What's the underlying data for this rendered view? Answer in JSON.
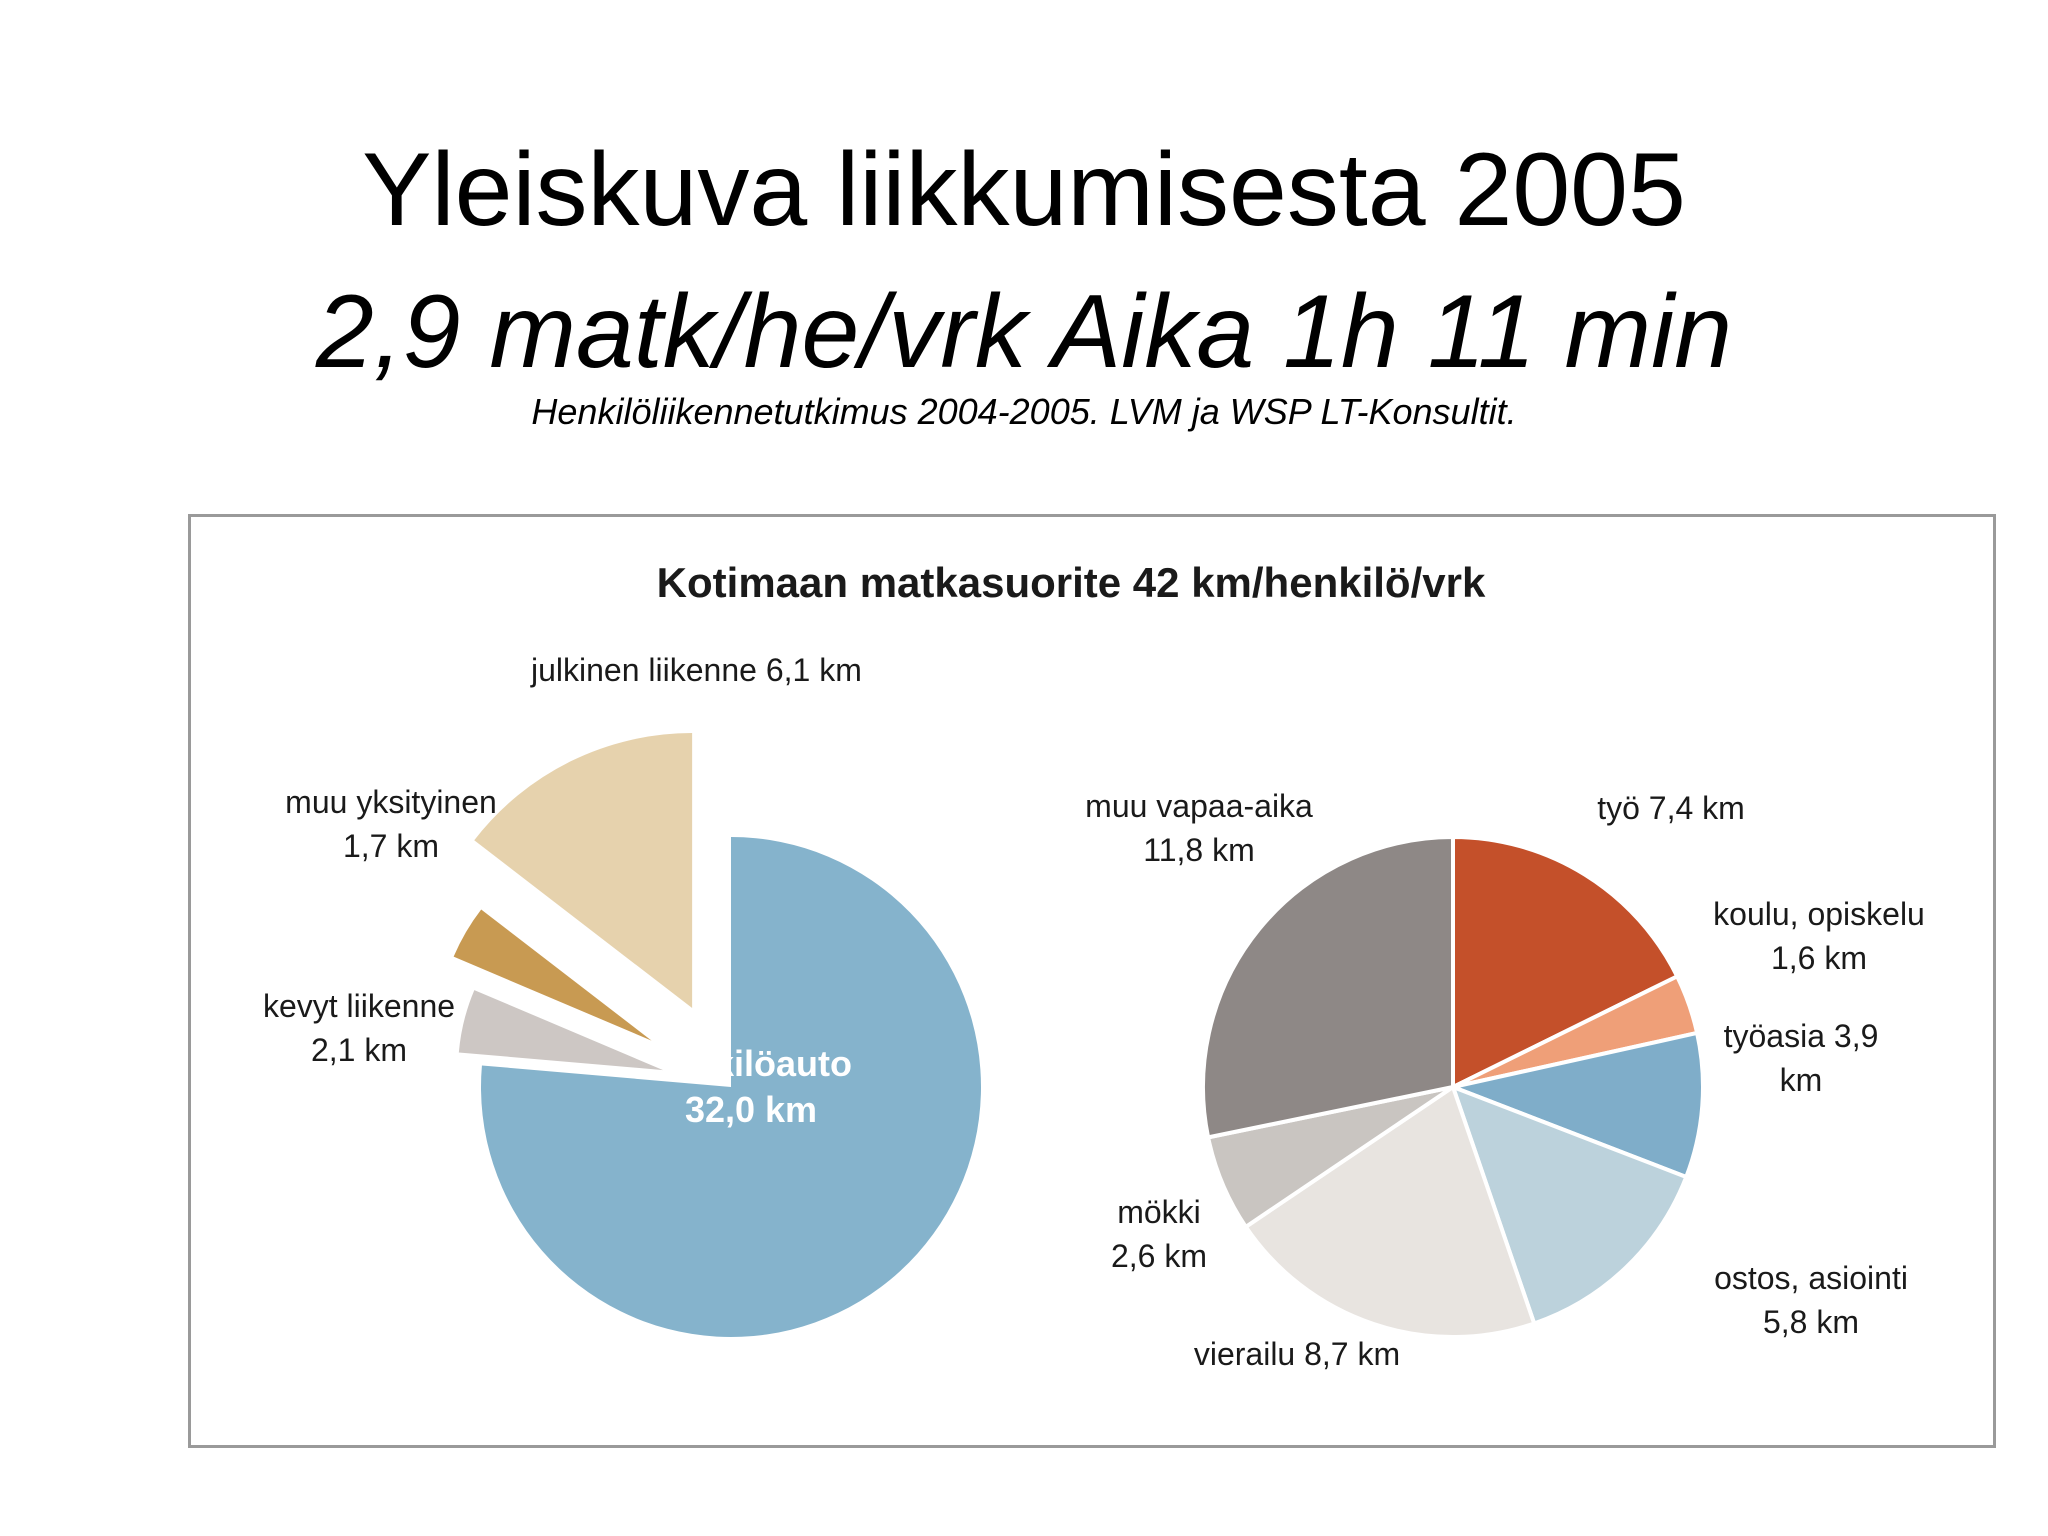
{
  "slide": {
    "title": "Yleiskuva liikkumisesta 2005",
    "subtitle": "2,9 matk/he/vrk Aika 1h 11 min",
    "source": "Henkilöliikennetutkimus 2004-2005. LVM  ja WSP LT-Konsultit."
  },
  "chart_data": [
    {
      "type": "pie",
      "title": "Kotimaan matkasuorite 42 km/henkilö/vrk",
      "unit": "km",
      "exploded": true,
      "slices": [
        {
          "name": "henkilöauto",
          "value": 32.0,
          "label": [
            "henkilöauto",
            "32,0 km"
          ],
          "color": "#85b3cc"
        },
        {
          "name": "kevyt liikenne",
          "value": 2.1,
          "label": [
            "kevyt liikenne",
            "2,1 km"
          ],
          "color": "#cdc7c4"
        },
        {
          "name": "muu yksityinen",
          "value": 1.7,
          "label": [
            "muu yksityinen",
            "1,7 km"
          ],
          "color": "#c89a52"
        },
        {
          "name": "julkinen liikenne",
          "value": 6.1,
          "label": [
            "julkinen liikenne 6,1 km"
          ],
          "color": "#e6d2ad"
        }
      ]
    },
    {
      "type": "pie",
      "title": "",
      "unit": "km",
      "slices": [
        {
          "name": "työ",
          "value": 7.4,
          "label": [
            "työ 7,4 km"
          ],
          "color": "#c4502a"
        },
        {
          "name": "koulu, opiskelu",
          "value": 1.6,
          "label": [
            "koulu, opiskelu",
            "1,6 km"
          ],
          "color": "#ef9f78"
        },
        {
          "name": "työasia",
          "value": 3.9,
          "label": [
            "työasia 3,9",
            "km"
          ],
          "color": "#7fadc9"
        },
        {
          "name": "ostos, asiointi",
          "value": 5.8,
          "label": [
            "ostos, asiointi",
            "5,8 km"
          ],
          "color": "#bcd2dc"
        },
        {
          "name": "vierailu",
          "value": 8.7,
          "label": [
            "vierailu 8,7 km"
          ],
          "color": "#e8e4e0"
        },
        {
          "name": "mökki",
          "value": 2.6,
          "label": [
            "mökki",
            "2,6 km"
          ],
          "color": "#c9c5c1"
        },
        {
          "name": "muu vapaa-aika",
          "value": 11.8,
          "label": [
            "muu vapaa-aika",
            "11,8 km"
          ],
          "color": "#8e8886"
        }
      ]
    }
  ]
}
